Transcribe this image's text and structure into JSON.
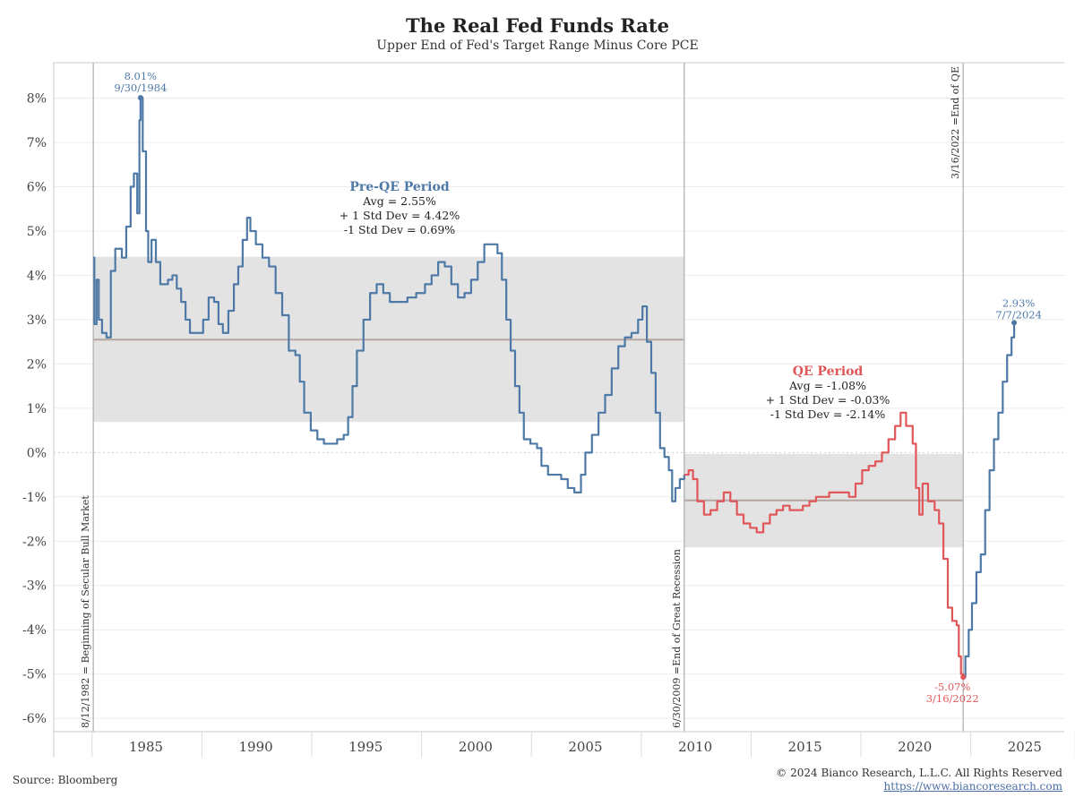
{
  "title": "The Real Fed Funds Rate",
  "subtitle": "Upper End of Fed's Target Range Minus Core PCE",
  "source": "Source: Bloomberg",
  "copyright": "© 2024 Bianco Research, L.L.C. All Rights Reserved",
  "url": "https://www.biancoresearch.com",
  "colors": {
    "pre_qe": "#4e79a7",
    "qe": "#e15759",
    "band": "#e3e3e3",
    "mean": "#b5a6a2",
    "vline": "#b3b3b3",
    "grid": "#ececec"
  },
  "chart_data": {
    "type": "line",
    "x_ticks": [
      1985,
      1990,
      1995,
      2000,
      2005,
      2010,
      2015,
      2020,
      2025
    ],
    "y_ticks": [
      8,
      7,
      6,
      5,
      4,
      3,
      2,
      1,
      0,
      -1,
      -2,
      -3,
      -4,
      -5,
      -6
    ],
    "y_tick_labels": [
      "8%",
      "7%",
      "6%",
      "5%",
      "4%",
      "3%",
      "2%",
      "1%",
      "0%",
      "-1%",
      "-2%",
      "-3%",
      "-4%",
      "-5%",
      "-6%"
    ],
    "xlim": [
      1980.8,
      2026.8
    ],
    "ylim": [
      -6.3,
      8.8
    ],
    "series": [
      {
        "key": "pre_qe",
        "color": "#4e79a7",
        "points": [
          [
            1982.6,
            4.4
          ],
          [
            1982.65,
            2.9
          ],
          [
            1982.75,
            3.9
          ],
          [
            1982.85,
            3.0
          ],
          [
            1983.0,
            2.7
          ],
          [
            1983.2,
            2.6
          ],
          [
            1983.4,
            4.1
          ],
          [
            1983.6,
            4.6
          ],
          [
            1983.9,
            4.4
          ],
          [
            1984.1,
            5.1
          ],
          [
            1984.3,
            6.0
          ],
          [
            1984.45,
            6.3
          ],
          [
            1984.6,
            5.4
          ],
          [
            1984.7,
            7.5
          ],
          [
            1984.75,
            8.01
          ],
          [
            1984.85,
            6.8
          ],
          [
            1985.0,
            5.0
          ],
          [
            1985.1,
            4.3
          ],
          [
            1985.25,
            4.8
          ],
          [
            1985.45,
            4.3
          ],
          [
            1985.65,
            3.8
          ],
          [
            1986.0,
            3.9
          ],
          [
            1986.2,
            4.0
          ],
          [
            1986.4,
            3.7
          ],
          [
            1986.6,
            3.4
          ],
          [
            1986.8,
            3.0
          ],
          [
            1987.0,
            2.7
          ],
          [
            1987.3,
            2.7
          ],
          [
            1987.6,
            3.0
          ],
          [
            1987.85,
            3.5
          ],
          [
            1988.1,
            3.4
          ],
          [
            1988.3,
            2.9
          ],
          [
            1988.5,
            2.7
          ],
          [
            1988.75,
            3.2
          ],
          [
            1989.0,
            3.8
          ],
          [
            1989.2,
            4.2
          ],
          [
            1989.4,
            4.8
          ],
          [
            1989.6,
            5.3
          ],
          [
            1989.75,
            5.0
          ],
          [
            1990.0,
            4.7
          ],
          [
            1990.3,
            4.4
          ],
          [
            1990.6,
            4.2
          ],
          [
            1990.9,
            3.6
          ],
          [
            1991.2,
            3.1
          ],
          [
            1991.5,
            2.3
          ],
          [
            1991.8,
            2.2
          ],
          [
            1992.0,
            1.6
          ],
          [
            1992.2,
            0.9
          ],
          [
            1992.5,
            0.5
          ],
          [
            1992.8,
            0.3
          ],
          [
            1993.1,
            0.2
          ],
          [
            1993.4,
            0.2
          ],
          [
            1993.7,
            0.3
          ],
          [
            1994.0,
            0.4
          ],
          [
            1994.2,
            0.8
          ],
          [
            1994.4,
            1.5
          ],
          [
            1994.6,
            2.3
          ],
          [
            1994.9,
            3.0
          ],
          [
            1995.2,
            3.6
          ],
          [
            1995.5,
            3.8
          ],
          [
            1995.8,
            3.6
          ],
          [
            1996.1,
            3.4
          ],
          [
            1996.5,
            3.4
          ],
          [
            1996.9,
            3.5
          ],
          [
            1997.3,
            3.6
          ],
          [
            1997.7,
            3.8
          ],
          [
            1998.0,
            4.0
          ],
          [
            1998.3,
            4.3
          ],
          [
            1998.6,
            4.2
          ],
          [
            1998.9,
            3.8
          ],
          [
            1999.2,
            3.5
          ],
          [
            1999.5,
            3.6
          ],
          [
            1999.8,
            3.9
          ],
          [
            2000.1,
            4.3
          ],
          [
            2000.4,
            4.7
          ],
          [
            2000.7,
            4.7
          ],
          [
            2001.0,
            4.5
          ],
          [
            2001.2,
            3.9
          ],
          [
            2001.4,
            3.0
          ],
          [
            2001.6,
            2.3
          ],
          [
            2001.8,
            1.5
          ],
          [
            2002.0,
            0.9
          ],
          [
            2002.2,
            0.3
          ],
          [
            2002.5,
            0.2
          ],
          [
            2002.8,
            0.1
          ],
          [
            2003.0,
            -0.3
          ],
          [
            2003.3,
            -0.5
          ],
          [
            2003.6,
            -0.5
          ],
          [
            2003.9,
            -0.6
          ],
          [
            2004.2,
            -0.8
          ],
          [
            2004.5,
            -0.9
          ],
          [
            2004.8,
            -0.5
          ],
          [
            2005.0,
            0.0
          ],
          [
            2005.3,
            0.4
          ],
          [
            2005.6,
            0.9
          ],
          [
            2005.9,
            1.3
          ],
          [
            2006.2,
            1.9
          ],
          [
            2006.5,
            2.4
          ],
          [
            2006.8,
            2.6
          ],
          [
            2007.1,
            2.7
          ],
          [
            2007.4,
            3.0
          ],
          [
            2007.6,
            3.3
          ],
          [
            2007.8,
            2.5
          ],
          [
            2008.0,
            1.8
          ],
          [
            2008.2,
            0.9
          ],
          [
            2008.4,
            0.1
          ],
          [
            2008.6,
            -0.1
          ],
          [
            2008.8,
            -0.4
          ],
          [
            2008.95,
            -1.1
          ],
          [
            2009.1,
            -0.8
          ],
          [
            2009.3,
            -0.6
          ],
          [
            2009.5,
            -0.5
          ]
        ]
      },
      {
        "key": "qe",
        "color": "#e15759",
        "points": [
          [
            2009.5,
            -0.5
          ],
          [
            2009.7,
            -0.4
          ],
          [
            2009.9,
            -0.6
          ],
          [
            2010.1,
            -1.1
          ],
          [
            2010.4,
            -1.4
          ],
          [
            2010.7,
            -1.3
          ],
          [
            2011.0,
            -1.1
          ],
          [
            2011.3,
            -0.9
          ],
          [
            2011.6,
            -1.1
          ],
          [
            2011.9,
            -1.4
          ],
          [
            2012.2,
            -1.6
          ],
          [
            2012.5,
            -1.7
          ],
          [
            2012.8,
            -1.8
          ],
          [
            2013.1,
            -1.6
          ],
          [
            2013.4,
            -1.4
          ],
          [
            2013.7,
            -1.3
          ],
          [
            2014.0,
            -1.2
          ],
          [
            2014.3,
            -1.3
          ],
          [
            2014.6,
            -1.3
          ],
          [
            2014.9,
            -1.2
          ],
          [
            2015.2,
            -1.1
          ],
          [
            2015.5,
            -1.0
          ],
          [
            2015.8,
            -1.0
          ],
          [
            2016.1,
            -0.9
          ],
          [
            2016.4,
            -0.9
          ],
          [
            2016.7,
            -0.9
          ],
          [
            2017.0,
            -1.0
          ],
          [
            2017.3,
            -0.7
          ],
          [
            2017.6,
            -0.4
          ],
          [
            2017.9,
            -0.3
          ],
          [
            2018.2,
            -0.2
          ],
          [
            2018.5,
            0.0
          ],
          [
            2018.8,
            0.3
          ],
          [
            2019.1,
            0.6
          ],
          [
            2019.35,
            0.9
          ],
          [
            2019.6,
            0.6
          ],
          [
            2019.9,
            0.2
          ],
          [
            2020.05,
            -0.8
          ],
          [
            2020.2,
            -1.4
          ],
          [
            2020.35,
            -0.7
          ],
          [
            2020.6,
            -1.1
          ],
          [
            2020.9,
            -1.3
          ],
          [
            2021.1,
            -1.6
          ],
          [
            2021.3,
            -2.4
          ],
          [
            2021.5,
            -3.5
          ],
          [
            2021.7,
            -3.8
          ],
          [
            2021.9,
            -3.9
          ],
          [
            2022.0,
            -4.6
          ],
          [
            2022.1,
            -5.0
          ],
          [
            2022.2,
            -5.07
          ]
        ]
      },
      {
        "key": "post_qe",
        "color": "#4e79a7",
        "points": [
          [
            2022.2,
            -5.07
          ],
          [
            2022.3,
            -4.6
          ],
          [
            2022.45,
            -4.0
          ],
          [
            2022.6,
            -3.4
          ],
          [
            2022.8,
            -2.7
          ],
          [
            2023.0,
            -2.3
          ],
          [
            2023.2,
            -1.3
          ],
          [
            2023.4,
            -0.4
          ],
          [
            2023.6,
            0.3
          ],
          [
            2023.8,
            0.9
          ],
          [
            2024.0,
            1.6
          ],
          [
            2024.2,
            2.2
          ],
          [
            2024.4,
            2.6
          ],
          [
            2024.52,
            2.93
          ]
        ]
      }
    ],
    "bands": [
      {
        "x0": 1982.6,
        "x1": 2009.5,
        "mean": 2.55,
        "upper": 4.42,
        "lower": 0.69
      },
      {
        "x0": 2009.5,
        "x1": 2022.2,
        "mean": -1.08,
        "upper": -0.03,
        "lower": -2.14
      }
    ],
    "vlines": [
      {
        "x": 1982.6,
        "label": "8/12/1982 = Beginning of Secular Bull Market",
        "pos": "bottom"
      },
      {
        "x": 2009.5,
        "label": "6/30/2009 =End of Great Recession",
        "pos": "bottom"
      },
      {
        "x": 2022.2,
        "label": "3/16/2022 =End of QE",
        "pos": "top"
      }
    ],
    "annotations": [
      {
        "key": "peak",
        "lines": [
          "8.01%",
          "9/30/1984"
        ],
        "x": 1984.75,
        "y": 8.01,
        "color": "#4e79a7",
        "marker": true
      },
      {
        "key": "trough",
        "lines": [
          "-5.07%",
          "3/16/2022"
        ],
        "x": 2022.2,
        "y": -5.07,
        "color": "#e15759",
        "marker": true
      },
      {
        "key": "latest",
        "lines": [
          "2.93%",
          "7/7/2024"
        ],
        "x": 2024.52,
        "y": 2.93,
        "color": "#4e79a7",
        "marker": true
      }
    ],
    "stat_boxes": [
      {
        "key": "pre-qe",
        "title": "Pre-QE Period",
        "color": "#4e79a7",
        "lines": [
          "Avg = 2.55%",
          "+ 1 Std Dev = 4.42%",
          "-1 Std Dev = 0.69%"
        ]
      },
      {
        "key": "qe",
        "title": "QE Period",
        "color": "#e15759",
        "lines": [
          "Avg = -1.08%",
          "+ 1 Std Dev = -0.03%",
          "-1 Std Dev = -2.14%"
        ]
      }
    ]
  }
}
